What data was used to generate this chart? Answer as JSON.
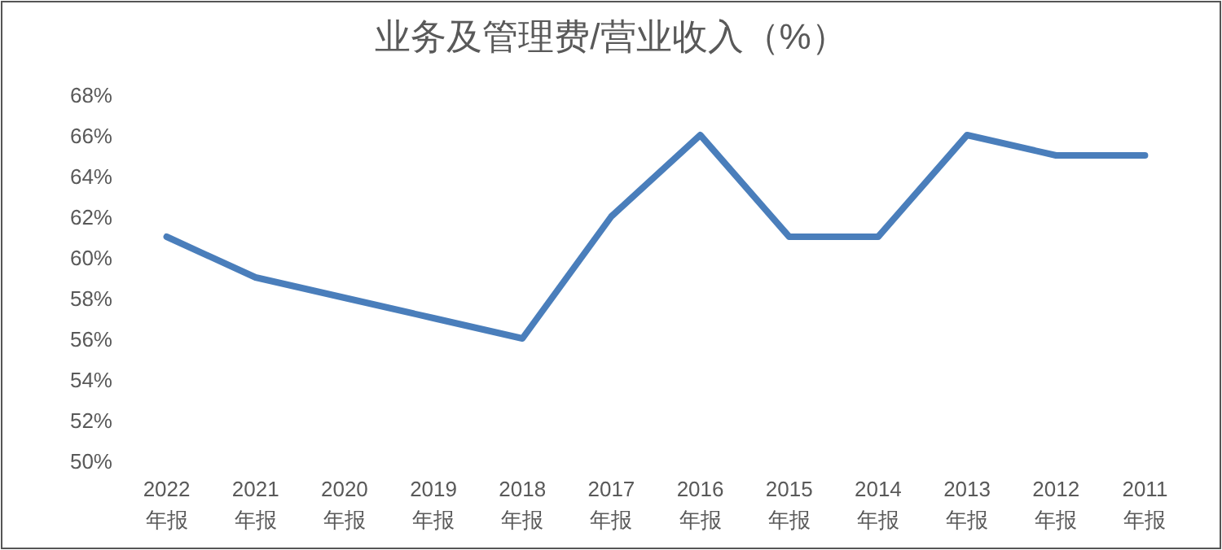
{
  "chart_data": {
    "type": "line",
    "title": "业务及管理费/营业收入（%）",
    "categories": [
      "2022\n年报",
      "2021\n年报",
      "2020\n年报",
      "2019\n年报",
      "2018\n年报",
      "2017\n年报",
      "2016\n年报",
      "2015\n年报",
      "2014\n年报",
      "2013\n年报",
      "2012\n年报",
      "2011\n年报"
    ],
    "series": [
      {
        "color": "#4a7ebb",
        "values": [
          61,
          59,
          58,
          57,
          56,
          62,
          66,
          61,
          61,
          66,
          65,
          65
        ]
      }
    ],
    "ylim": [
      50,
      68
    ],
    "yticks": [
      {
        "value": 50,
        "label": "50%"
      },
      {
        "value": 52,
        "label": "52%"
      },
      {
        "value": 54,
        "label": "54%"
      },
      {
        "value": 56,
        "label": "56%"
      },
      {
        "value": 58,
        "label": "58%"
      },
      {
        "value": 60,
        "label": "60%"
      },
      {
        "value": 62,
        "label": "62%"
      },
      {
        "value": 64,
        "label": "64%"
      },
      {
        "value": 66,
        "label": "66%"
      },
      {
        "value": 68,
        "label": "68%"
      }
    ],
    "grid": false,
    "marker": "none",
    "line_style": "solid"
  }
}
